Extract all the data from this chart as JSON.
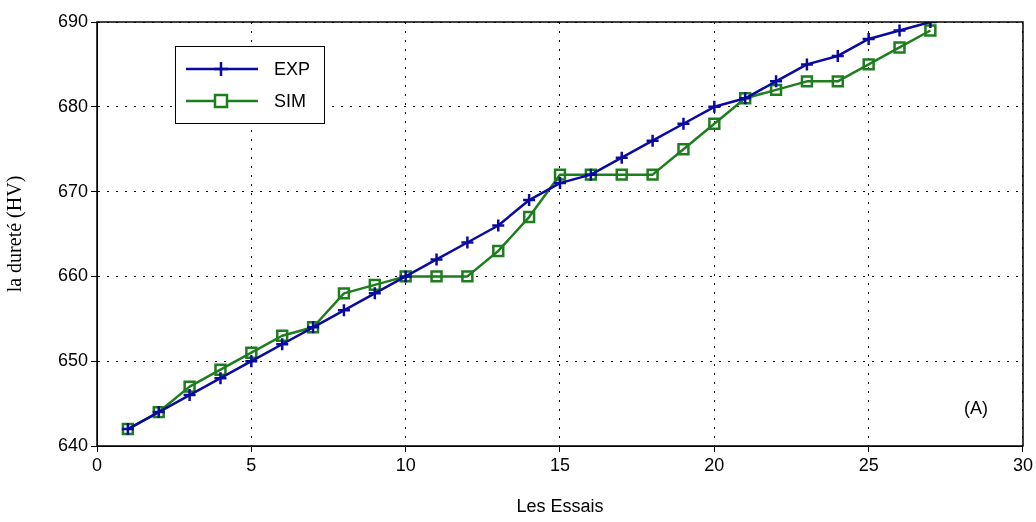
{
  "chart_data": {
    "type": "line",
    "xlabel": "Les Essais",
    "ylabel": "la dureté (HV)",
    "x": [
      1,
      2,
      3,
      4,
      5,
      6,
      7,
      8,
      9,
      10,
      11,
      12,
      13,
      14,
      15,
      16,
      17,
      18,
      19,
      20,
      21,
      22,
      23,
      24,
      25,
      26,
      27
    ],
    "series": [
      {
        "name": "EXP",
        "color": "#0a0aa0",
        "marker": "cross",
        "values": [
          642,
          644,
          646,
          648,
          650,
          652,
          654,
          656,
          658,
          660,
          662,
          664,
          666,
          669,
          671,
          672,
          674,
          676,
          678,
          680,
          681,
          683,
          685,
          686,
          688,
          689,
          690
        ]
      },
      {
        "name": "SIM",
        "color": "#1e7d1e",
        "marker": "square",
        "values": [
          642,
          644,
          647,
          649,
          651,
          653,
          654,
          658,
          659,
          660,
          660,
          660,
          663,
          667,
          672,
          672,
          672,
          672,
          675,
          678,
          681,
          682,
          683,
          683,
          685,
          687,
          689
        ]
      }
    ],
    "xlim": [
      0,
      30
    ],
    "xticks": [
      0,
      5,
      10,
      15,
      20,
      25,
      30
    ],
    "ylim": [
      640,
      690
    ],
    "yticks": [
      640,
      650,
      660,
      670,
      680,
      690
    ],
    "grid": true,
    "legend": "top left",
    "line_style": "solid",
    "annotations": [
      "(A)"
    ]
  }
}
